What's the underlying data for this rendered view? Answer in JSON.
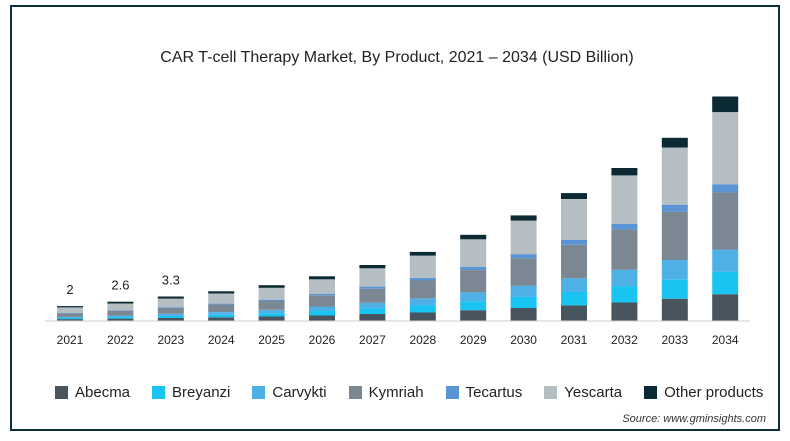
{
  "chart_data": {
    "type": "bar",
    "stacked": true,
    "title": "CAR T-cell Therapy Market, By Product, 2021 – 2034 (USD Billion)",
    "xlabel": "",
    "ylabel": "",
    "categories": [
      "2021",
      "2022",
      "2023",
      "2024",
      "2025",
      "2026",
      "2027",
      "2028",
      "2029",
      "2030",
      "2031",
      "2032",
      "2033",
      "2034"
    ],
    "annotations": [
      {
        "category": "2021",
        "text": "2"
      },
      {
        "category": "2022",
        "text": "2.6"
      },
      {
        "category": "2023",
        "text": "3.3"
      }
    ],
    "series": [
      {
        "name": "Abecma",
        "color": "#49555e",
        "values": [
          0.25,
          0.32,
          0.4,
          0.5,
          0.6,
          0.75,
          0.95,
          1.15,
          1.45,
          1.75,
          2.1,
          2.5,
          3.0,
          3.6
        ]
      },
      {
        "name": "Breyanzi",
        "color": "#19c3f2",
        "values": [
          0.15,
          0.2,
          0.28,
          0.35,
          0.45,
          0.6,
          0.75,
          0.95,
          1.2,
          1.5,
          1.85,
          2.2,
          2.6,
          3.0
        ]
      },
      {
        "name": "Carvykti",
        "color": "#4fb0e6",
        "values": [
          0.15,
          0.2,
          0.28,
          0.35,
          0.45,
          0.6,
          0.75,
          0.95,
          1.2,
          1.5,
          1.8,
          2.2,
          2.6,
          3.0
        ]
      },
      {
        "name": "Kymriah",
        "color": "#7b8792",
        "values": [
          0.5,
          0.65,
          0.8,
          1.0,
          1.2,
          1.5,
          1.9,
          2.4,
          3.0,
          3.7,
          4.5,
          5.4,
          6.5,
          7.7
        ]
      },
      {
        "name": "Tecartus",
        "color": "#5b94d4",
        "values": [
          0.07,
          0.09,
          0.11,
          0.14,
          0.17,
          0.22,
          0.28,
          0.35,
          0.45,
          0.55,
          0.65,
          0.78,
          0.95,
          1.1
        ]
      },
      {
        "name": "Yescarta",
        "color": "#b5bec3",
        "values": [
          0.7,
          0.9,
          1.15,
          1.35,
          1.6,
          1.95,
          2.45,
          3.0,
          3.7,
          4.5,
          5.5,
          6.5,
          7.7,
          9.7
        ]
      },
      {
        "name": "Other products",
        "color": "#0c2a33",
        "values": [
          0.18,
          0.24,
          0.28,
          0.3,
          0.35,
          0.4,
          0.45,
          0.5,
          0.6,
          0.7,
          0.8,
          1.0,
          1.3,
          2.1
        ]
      }
    ],
    "ylim": [
      0,
      30
    ],
    "grid": false,
    "legend": "bottom"
  },
  "legend_items": [
    {
      "label": "Abecma",
      "color": "#49555e"
    },
    {
      "label": "Breyanzi",
      "color": "#19c3f2"
    },
    {
      "label": "Carvykti",
      "color": "#4fb0e6"
    },
    {
      "label": "Kymriah",
      "color": "#7b8792"
    },
    {
      "label": "Tecartus",
      "color": "#5b94d4"
    },
    {
      "label": "Yescarta",
      "color": "#b5bec3"
    },
    {
      "label": "Other products",
      "color": "#0c2a33"
    }
  ],
  "source": "Source: www.gminsights.com"
}
